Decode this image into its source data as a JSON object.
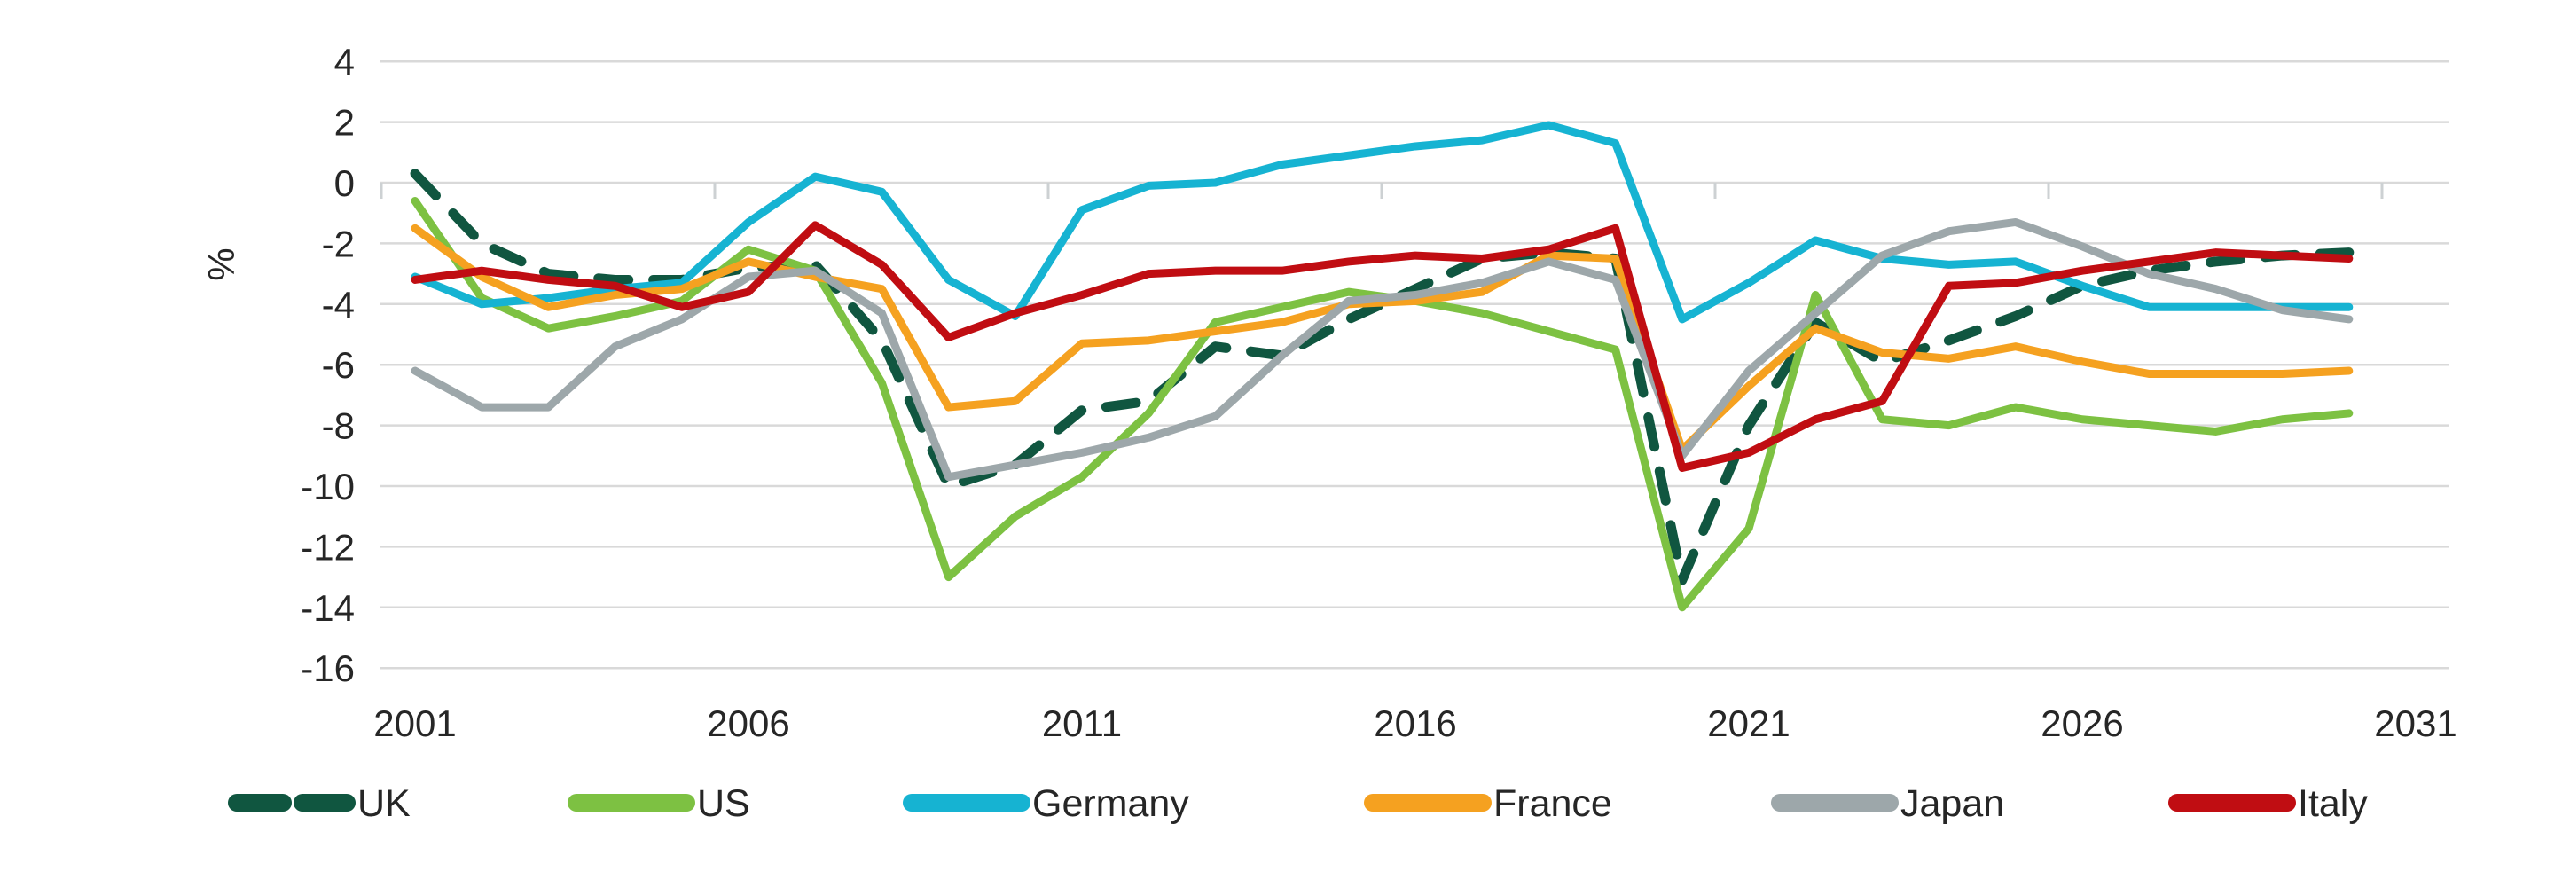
{
  "chart_data": {
    "type": "line",
    "title": "",
    "ylabel": "%",
    "xlabel": "",
    "x": [
      2001,
      2002,
      2003,
      2004,
      2005,
      2006,
      2007,
      2008,
      2009,
      2010,
      2011,
      2012,
      2013,
      2014,
      2015,
      2016,
      2017,
      2018,
      2019,
      2020,
      2021,
      2022,
      2023,
      2024,
      2025,
      2026,
      2027,
      2028,
      2029,
      2030
    ],
    "x_tick_labels": [
      "2001",
      "2006",
      "2011",
      "2016",
      "2021",
      "2026",
      "2031"
    ],
    "y_ticks": [
      4,
      2,
      0,
      -2,
      -4,
      -6,
      -8,
      -10,
      -12,
      -14,
      -16
    ],
    "ylim": [
      -16,
      4
    ],
    "xlim": [
      2001,
      2031
    ],
    "grid": "horizontal",
    "gridline_color": "#d9d9d9",
    "axis_tick_color": "#cdd1d3",
    "text_color": "#262626",
    "legend_position": "bottom",
    "series": [
      {
        "name": "UK",
        "color": "#105640",
        "dashed": true,
        "values": [
          0.3,
          -2.0,
          -3.0,
          -3.2,
          -3.2,
          -2.8,
          -2.7,
          -5.2,
          -10.0,
          -9.3,
          -7.5,
          -7.2,
          -5.4,
          -5.7,
          -4.5,
          -3.5,
          -2.5,
          -2.3,
          -2.5,
          -13.1,
          -8.0,
          -4.6,
          -5.9,
          -5.2,
          -4.4,
          -3.4,
          -2.9,
          -2.6,
          -2.4,
          -2.3
        ]
      },
      {
        "name": "US",
        "color": "#7dc142",
        "dashed": false,
        "values": [
          -0.6,
          -3.8,
          -4.8,
          -4.4,
          -3.9,
          -2.2,
          -2.9,
          -6.6,
          -13.0,
          -11.0,
          -9.7,
          -7.6,
          -4.6,
          -4.1,
          -3.6,
          -3.9,
          -4.3,
          -4.9,
          -5.5,
          -14.0,
          -11.4,
          -3.7,
          -7.8,
          -8.0,
          -7.4,
          -7.8,
          -8.0,
          -8.2,
          -7.8,
          -7.6
        ]
      },
      {
        "name": "Germany",
        "color": "#16b3d2",
        "dashed": false,
        "values": [
          -3.1,
          -4.0,
          -3.8,
          -3.5,
          -3.3,
          -1.3,
          0.2,
          -0.3,
          -3.2,
          -4.4,
          -0.9,
          -0.1,
          0.0,
          0.6,
          0.9,
          1.2,
          1.4,
          1.9,
          1.3,
          -4.5,
          -3.3,
          -1.9,
          -2.5,
          -2.7,
          -2.6,
          -3.4,
          -4.1,
          -4.1,
          -4.1,
          -4.1
        ]
      },
      {
        "name": "France",
        "color": "#f5a120",
        "dashed": false,
        "values": [
          -1.5,
          -3.1,
          -4.1,
          -3.7,
          -3.5,
          -2.6,
          -3.1,
          -3.5,
          -7.4,
          -7.2,
          -5.3,
          -5.2,
          -4.9,
          -4.6,
          -4.0,
          -3.9,
          -3.6,
          -2.4,
          -2.5,
          -8.8,
          -6.7,
          -4.8,
          -5.6,
          -5.8,
          -5.4,
          -5.9,
          -6.3,
          -6.3,
          -6.3,
          -6.2
        ]
      },
      {
        "name": "Japan",
        "color": "#9da7aa",
        "dashed": false,
        "values": [
          -6.2,
          -7.4,
          -7.4,
          -5.4,
          -4.5,
          -3.1,
          -2.9,
          -4.3,
          -9.7,
          -9.3,
          -8.9,
          -8.4,
          -7.7,
          -5.7,
          -3.9,
          -3.7,
          -3.3,
          -2.6,
          -3.2,
          -9.0,
          -6.2,
          -4.3,
          -2.4,
          -1.6,
          -1.3,
          -2.1,
          -3.0,
          -3.5,
          -4.2,
          -4.5
        ]
      },
      {
        "name": "Italy",
        "color": "#c00d12",
        "dashed": false,
        "values": [
          -3.2,
          -2.9,
          -3.2,
          -3.4,
          -4.1,
          -3.6,
          -1.4,
          -2.7,
          -5.1,
          -4.3,
          -3.7,
          -3.0,
          -2.9,
          -2.9,
          -2.6,
          -2.4,
          -2.5,
          -2.2,
          -1.5,
          -9.4,
          -8.9,
          -7.8,
          -7.2,
          -3.4,
          -3.3,
          -2.9,
          -2.6,
          -2.3,
          -2.4,
          -2.5
        ]
      }
    ]
  }
}
